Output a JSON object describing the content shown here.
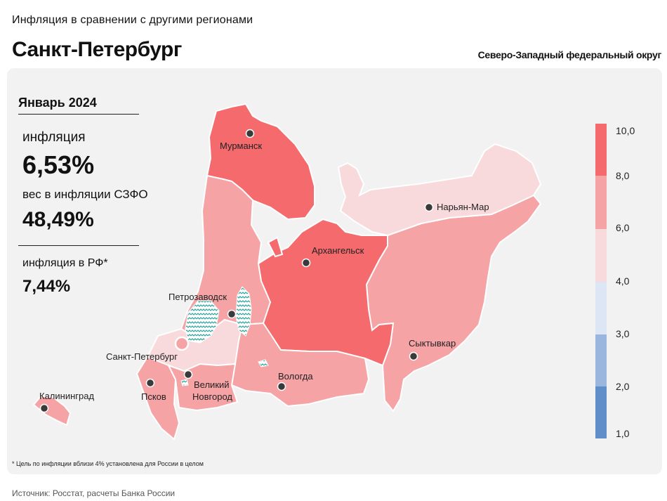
{
  "header": {
    "subtitle": "Инфляция  в сравнении  с другими  регионами",
    "title": "Санкт-Петербург",
    "district": "Северо-Западный федеральный округ"
  },
  "stats": {
    "period": "Январь 2024",
    "inflation_label": "инфляция",
    "inflation_value": "6,53%",
    "weight_label": "вес в инфляции  СЗФО",
    "weight_value": "48,49%",
    "rf_label": "инфляция  в РФ*",
    "rf_value": "7,44%"
  },
  "cities": {
    "murmansk": "Мурманск",
    "naryan_mar": "Нарьян-Мар",
    "arkhangelsk": "Архангельск",
    "petrozavodsk": "Петрозаводск",
    "spb": "Санкт-Петербург",
    "syktyvkar": "Сыктывкар",
    "vologda": "Вологда",
    "kaliningrad": "Калининград",
    "pskov": "Псков",
    "novgorod_1": "Великий",
    "novgorod_2": "Новгород"
  },
  "legend": {
    "ticks": [
      "10,0",
      "8,0",
      "6,0",
      "4,0",
      "3,0",
      "2,0",
      "1,0"
    ],
    "colors": [
      "#f46a6d",
      "#f6a3a6",
      "#f8dadc",
      "#dde6f4",
      "#9ab6de",
      "#5f8ec9"
    ]
  },
  "region_colors": {
    "high": "#f46a6d",
    "mid": "#f6a3a6",
    "low": "#f8dadc",
    "water_pattern": "#2aa39b"
  },
  "footnote": "* Цель по инфляции вблизи 4% установлена для России в целом",
  "source": "Источник: Росстат, расчеты Банка России"
}
